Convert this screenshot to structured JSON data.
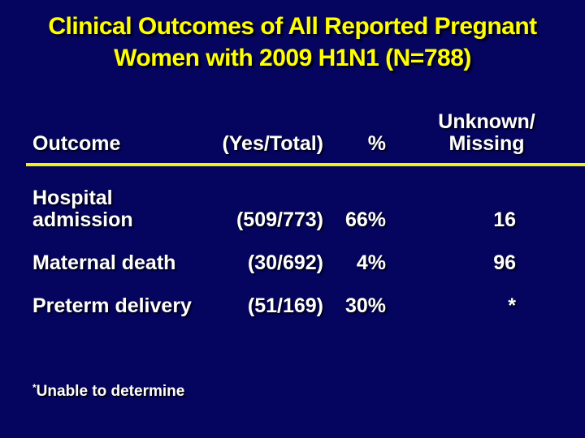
{
  "title": {
    "line1": "Clinical Outcomes of All Reported Pregnant",
    "line2": "Women with 2009 H1N1 (N=788)",
    "full": "Clinical Outcomes of All Reported Pregnant Women with 2009 H1N1 (N=788)"
  },
  "colors": {
    "background": "#05055f",
    "title_text": "#ffff00",
    "body_text": "#ffffff",
    "divider_line": "#f0f01e"
  },
  "table": {
    "headers": {
      "outcome": "Outcome",
      "yes_total": "(Yes/Total)",
      "percent": "%",
      "unknown_line1": "Unknown/",
      "unknown_line2": "Missing"
    },
    "rows": [
      {
        "outcome": "Hospital admission",
        "yes_total": "(509/773)",
        "percent": "66%",
        "unknown_missing": "16"
      },
      {
        "outcome": "Maternal death",
        "yes_total": "(30/692)",
        "percent": "4%",
        "unknown_missing": "96"
      },
      {
        "outcome": "Preterm delivery",
        "yes_total": "(51/169)",
        "percent": "30%",
        "unknown_missing": "*"
      }
    ]
  },
  "footnote": {
    "marker": "*",
    "text": "Unable to determine"
  },
  "chart_data": {
    "type": "table",
    "title": "Clinical Outcomes of All Reported Pregnant Women with 2009 H1N1 (N=788)",
    "columns": [
      "Outcome",
      "(Yes/Total)",
      "%",
      "Unknown/Missing"
    ],
    "rows": [
      [
        "Hospital admission",
        "(509/773)",
        "66%",
        "16"
      ],
      [
        "Maternal death",
        "(30/692)",
        "4%",
        "96"
      ],
      [
        "Preterm delivery",
        "(51/169)",
        "30%",
        "*"
      ]
    ],
    "footnote": "*Unable to determine"
  }
}
